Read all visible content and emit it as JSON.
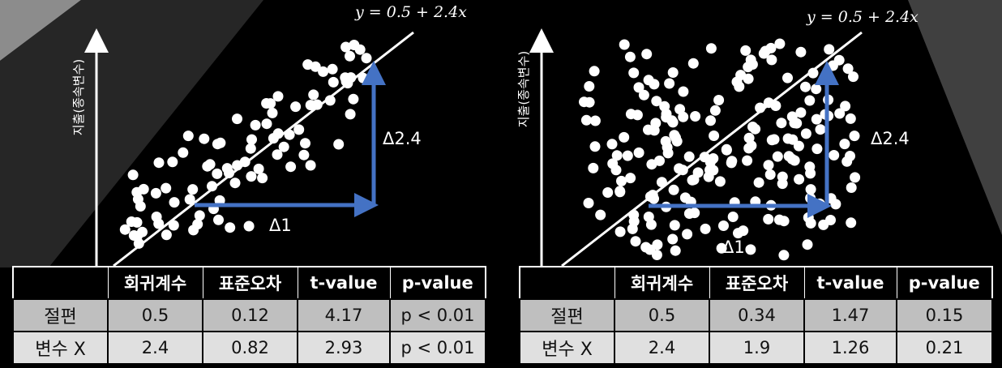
{
  "colors": {
    "background": "#000000",
    "points": "#ffffff",
    "fit_line": "#ffffff",
    "delta_arrows": "#4472c4",
    "band_gray": "#8c8c8c"
  },
  "panels": [
    {
      "equation": "y = 0.5 + 2.4x",
      "ylabel": "지출(종속변수)",
      "delta_x": "Δ1",
      "delta_y": "Δ2.4",
      "table": {
        "headers": [
          "",
          "회귀계수",
          "표준오차",
          "t-value",
          "p-value"
        ],
        "rows": [
          [
            "절편",
            "0.5",
            "0.12",
            "4.17",
            "p < 0.01"
          ],
          [
            "변수 X",
            "2.4",
            "0.82",
            "2.93",
            "p < 0.01"
          ]
        ]
      }
    },
    {
      "equation": "y = 0.5 + 2.4x",
      "ylabel": "지출(종속변수)",
      "delta_x": "Δ1",
      "delta_y": "Δ2.4",
      "table": {
        "headers": [
          "",
          "회귀계수",
          "표준오차",
          "t-value",
          "p-value"
        ],
        "rows": [
          [
            "절편",
            "0.5",
            "0.34",
            "1.47",
            "0.15"
          ],
          [
            "변수 X",
            "2.4",
            "1.9",
            "1.26",
            "0.21"
          ]
        ]
      }
    }
  ],
  "chart_data": [
    {
      "type": "scatter",
      "title": "",
      "xlabel": "",
      "ylabel": "지출(종속변수)",
      "fit_line": {
        "intercept": 0.5,
        "slope": 2.4
      },
      "spread": "narrow"
    },
    {
      "type": "scatter",
      "title": "",
      "xlabel": "",
      "ylabel": "지출(종속변수)",
      "fit_line": {
        "intercept": 0.5,
        "slope": 2.4
      },
      "spread": "wide"
    }
  ]
}
